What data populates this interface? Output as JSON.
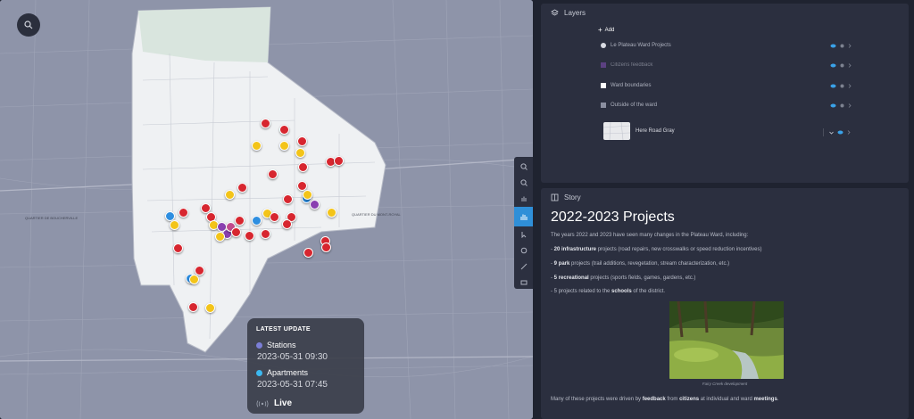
{
  "map": {
    "search_icon": "search-icon",
    "tools": [
      "zoom-in-icon",
      "zoom-out-icon",
      "hand-icon",
      "cursor-icon",
      "select-icon",
      "ruler-icon",
      "layers-icon"
    ],
    "neighborhoods": [
      "QUARTIER DE BOUCHERVILLE",
      "QUARTIER DU MONT-ROYAL"
    ],
    "latest_update": {
      "title": "LATEST UPDATE",
      "stations_label": "Stations",
      "stations_time": "2023-05-31 09:30",
      "stations_color": "#7b7ed6",
      "apartments_label": "Apartments",
      "apartments_time": "2023-05-31 07:45",
      "apartments_color": "#3bb8f0",
      "live_label": "Live"
    },
    "pin_colors": {
      "red": "#d7262f",
      "yellow": "#f3c419",
      "blue": "#2e8ee0",
      "purple": "#8a3fb0",
      "pink": "#c24a8c"
    }
  },
  "layers": {
    "title": "Layers",
    "add_label": "Add",
    "items": [
      {
        "label": "Le Plateau Ward Projects",
        "swatch": "#d9dbe2"
      },
      {
        "label": "Citizens feedback",
        "swatch": "#7d4db0"
      },
      {
        "label": "Ward boundaries",
        "swatch": "#ffffff"
      },
      {
        "label": "Outside of the ward",
        "swatch": "#8b8fa0"
      }
    ],
    "basemap_label": "Here Road Gray"
  },
  "story": {
    "title": "Story",
    "heading": "2022-2023 Projects",
    "intro": "The years 2022 and 2023 have seen many changes in the Plateau Ward, including:",
    "b1_bold": "20 infrastructure",
    "b1_rest": " projects (road repairs, new crosswalks or speed reduction incentives)",
    "b2_bold": "9 park",
    "b2_rest": " projects (trail additions, revegetation, stream characterization, etc.)",
    "b3_bold": "5 recreational",
    "b3_rest": " projects (sports fields, games, gardens, etc.)",
    "b4_pre": "5 projects related to the ",
    "b4_bold": "schools",
    "b4_rest": " of the district.",
    "caption": "Fairy Creek development",
    "outro_pre": "Many of these projects were driven by ",
    "outro_b1": "feedback",
    "outro_mid1": " from ",
    "outro_b2": "citizens",
    "outro_mid2": " at individual and ward ",
    "outro_b3": "meetings",
    "outro_end": "."
  }
}
